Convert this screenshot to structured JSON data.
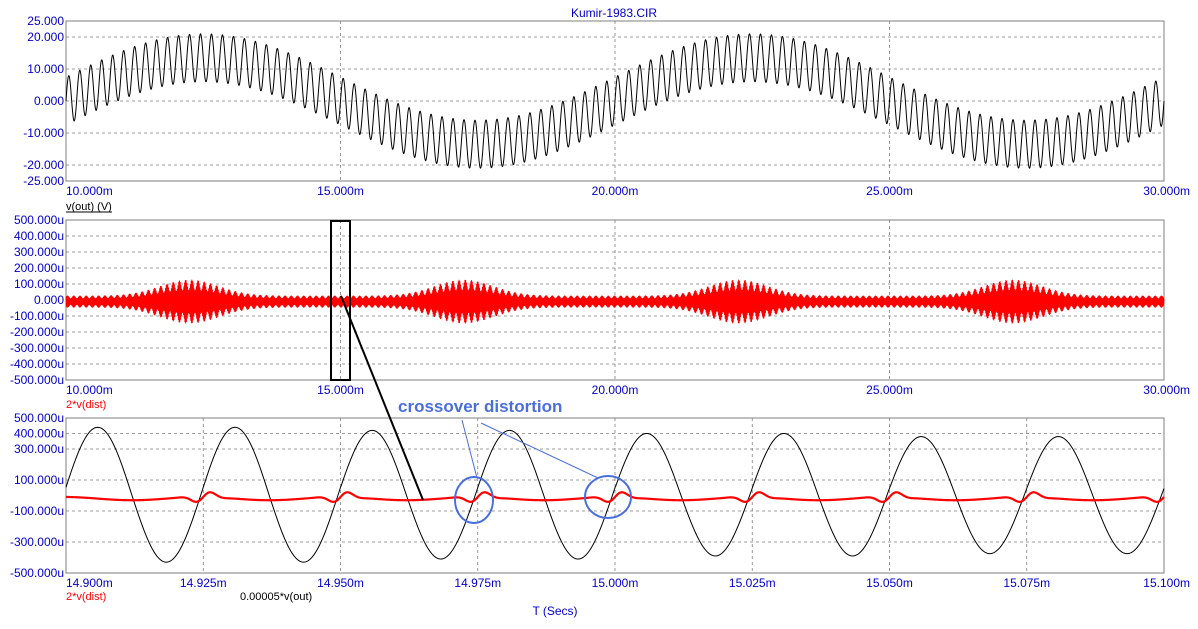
{
  "window_title": "Kumir-1983.CIR",
  "x_axis_label": "T (Secs)",
  "annotation": {
    "text": "crossover distortion"
  },
  "colors": {
    "axis_text": "#0000cc",
    "trace_black": "#000000",
    "trace_red": "#ff0000",
    "annotation": "#4a6fdc",
    "grid": "#7f7f7f"
  },
  "chart_data": [
    {
      "type": "line",
      "id": "top",
      "x_unit": "ms",
      "xlim": [
        10,
        30
      ],
      "ylim": [
        -25,
        25
      ],
      "x_ticks": [
        10,
        15,
        20,
        25,
        30
      ],
      "x_tick_labels": [
        "10.000m",
        "15.000m",
        "20.000m",
        "25.000m",
        "30.000m"
      ],
      "y_ticks": [
        -25,
        -20,
        -10,
        0,
        10,
        20,
        25
      ],
      "y_tick_labels": [
        "-25.000",
        "-20.000",
        "-10.000",
        "0.000",
        "10.000",
        "20.000",
        "25.000"
      ],
      "series": [
        {
          "name": "v(out) (V)",
          "color": "#000000",
          "carrier_frequency_hz": 5000,
          "modulation_frequency_hz": 100,
          "carrier_amplitude_v": 7.5,
          "modulation_amplitude_v": 13.5
        }
      ]
    },
    {
      "type": "line",
      "id": "middle",
      "x_unit": "ms",
      "xlim": [
        10,
        30
      ],
      "ylim": [
        -500,
        500
      ],
      "x_ticks": [
        10,
        15,
        20,
        25,
        30
      ],
      "x_tick_labels": [
        "10.000m",
        "15.000m",
        "20.000m",
        "25.000m",
        "30.000m"
      ],
      "y_ticks": [
        -500,
        -400,
        -300,
        -200,
        -100,
        0,
        100,
        200,
        300,
        400,
        500
      ],
      "y_tick_labels": [
        "-500.000u",
        "-400.000u",
        "-300.000u",
        "-200.000u",
        "-100.000u",
        "0.000",
        "100.000u",
        "200.000u",
        "300.000u",
        "400.000u",
        "500.000u"
      ],
      "series": [
        {
          "name": "2*v(dist)",
          "color": "#ff0000",
          "envelope_peaks_ms": [
            12.25,
            17.25,
            22.25,
            27.25
          ],
          "envelope_peak_uv": 135,
          "envelope_floor_uv": 35
        }
      ]
    },
    {
      "type": "line",
      "id": "bottom",
      "x_unit": "ms",
      "xlim": [
        14.9,
        15.1
      ],
      "ylim": [
        -500,
        500
      ],
      "x_ticks": [
        14.9,
        14.925,
        14.95,
        14.975,
        15.0,
        15.025,
        15.05,
        15.075,
        15.1
      ],
      "x_tick_labels": [
        "14.900m",
        "14.925m",
        "14.950m",
        "14.975m",
        "15.000m",
        "15.025m",
        "15.050m",
        "15.075m",
        "15.100m"
      ],
      "y_ticks": [
        -500,
        -300,
        -100,
        100,
        300,
        400,
        500
      ],
      "y_tick_labels": [
        "-500.000u",
        "-300.000u",
        "-100.000u",
        "100.000u",
        "300.000u",
        "400.000u",
        "500.000u"
      ],
      "series": [
        {
          "name": "2*v(dist)",
          "color": "#ff0000",
          "baseline_uv": -10,
          "ripple_uv": 30,
          "crossover_times_ms": [
            14.925,
            14.95,
            14.975,
            15.0,
            15.025,
            15.05,
            15.075,
            15.1
          ],
          "crossover_spike_uv": 45
        },
        {
          "name": "0.00005*v(out)",
          "color": "#000000",
          "frequency_hz": 40000,
          "peak_uv": [
            440,
            420,
            400,
            380
          ],
          "trough_uv": [
            -430,
            -410,
            -390,
            -375
          ]
        }
      ]
    }
  ]
}
